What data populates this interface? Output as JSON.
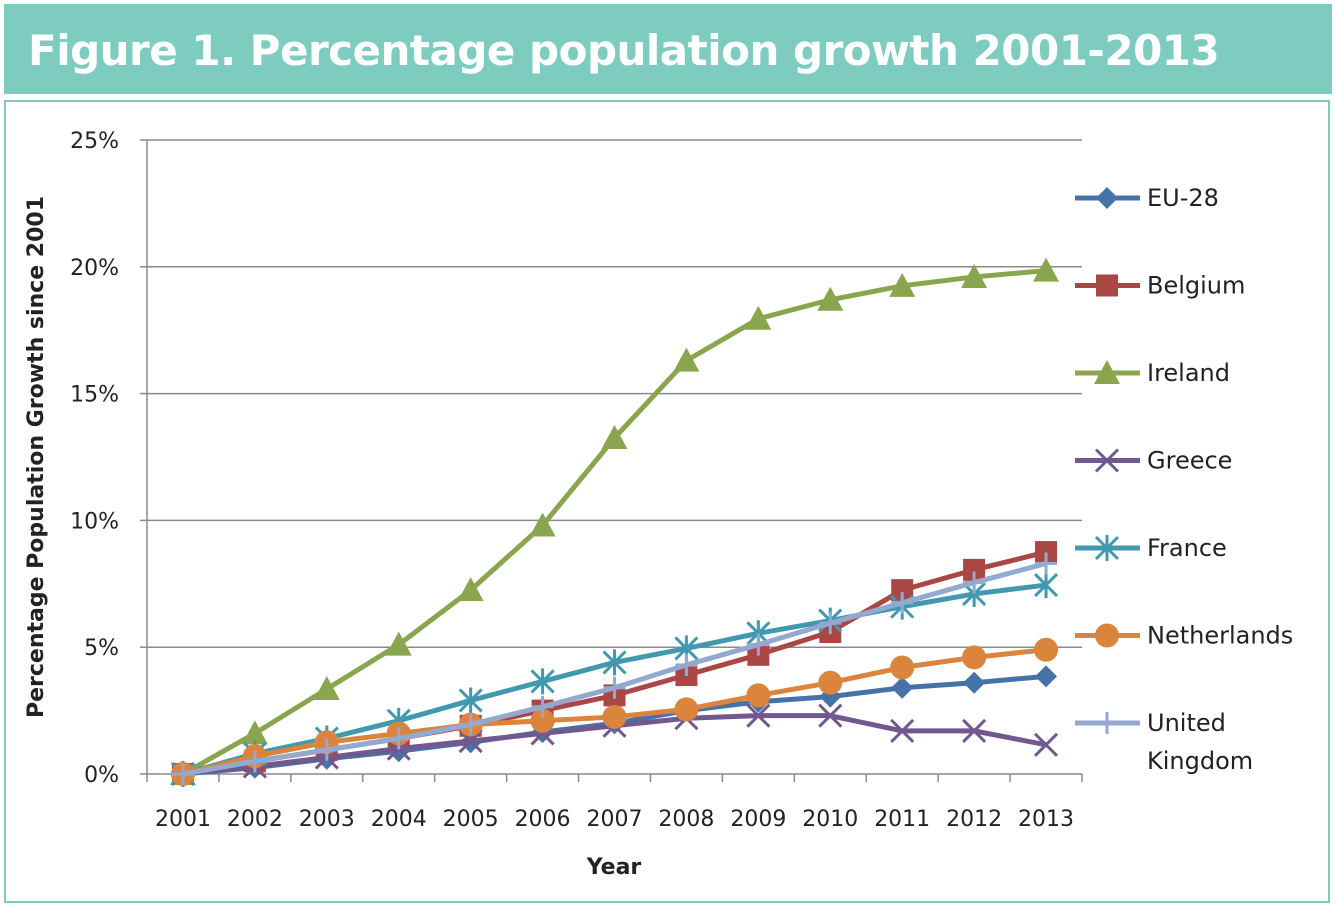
{
  "header": {
    "title": "Figure 1. Percentage population growth 2001-2013"
  },
  "chart_data": {
    "type": "line",
    "title": "Figure 1. Percentage population growth 2001-2013",
    "xlabel": "Year",
    "ylabel": "Percentage Population Growth since 2001",
    "x": [
      "2001",
      "2002",
      "2003",
      "2004",
      "2005",
      "2006",
      "2007",
      "2008",
      "2009",
      "2010",
      "2011",
      "2012",
      "2013"
    ],
    "ylim": [
      0,
      25
    ],
    "yticks": [
      0,
      5,
      10,
      15,
      20,
      25
    ],
    "ytick_labels": [
      "0%",
      "5%",
      "10%",
      "15%",
      "20%",
      "25%"
    ],
    "grid": true,
    "legend": "right",
    "series": [
      {
        "name": "EU-28",
        "color": "#4572a7",
        "marker": "diamond",
        "values": [
          0,
          0.25,
          0.6,
          0.9,
          1.25,
          1.65,
          2.0,
          2.5,
          2.85,
          3.05,
          3.4,
          3.6,
          3.85
        ]
      },
      {
        "name": "Belgium",
        "color": "#aa4643",
        "marker": "square",
        "values": [
          0,
          0.5,
          0.95,
          1.4,
          1.9,
          2.5,
          3.1,
          3.9,
          4.7,
          5.6,
          7.25,
          8.05,
          8.75
        ]
      },
      {
        "name": "Ireland",
        "color": "#89a54e",
        "marker": "triangle",
        "values": [
          0,
          1.6,
          3.35,
          5.1,
          7.25,
          9.8,
          13.25,
          16.3,
          17.95,
          18.7,
          19.25,
          19.6,
          19.85
        ]
      },
      {
        "name": "Greece",
        "color": "#71588f",
        "marker": "x",
        "values": [
          0,
          0.3,
          0.65,
          1.0,
          1.3,
          1.6,
          1.9,
          2.2,
          2.3,
          2.3,
          1.7,
          1.7,
          1.15
        ]
      },
      {
        "name": "France",
        "color": "#4198af",
        "marker": "star",
        "values": [
          0,
          0.8,
          1.4,
          2.1,
          2.9,
          3.65,
          4.4,
          4.95,
          5.55,
          6.05,
          6.6,
          7.1,
          7.45
        ]
      },
      {
        "name": "Netherlands",
        "color": "#db843d",
        "marker": "circle",
        "values": [
          0,
          0.7,
          1.25,
          1.6,
          1.95,
          2.1,
          2.25,
          2.55,
          3.1,
          3.6,
          4.2,
          4.6,
          4.9
        ]
      },
      {
        "name": "United Kingdom",
        "color": "#93a9cf",
        "marker": "plus",
        "values": [
          0,
          0.5,
          0.95,
          1.4,
          1.95,
          2.65,
          3.4,
          4.3,
          5.1,
          5.95,
          6.75,
          7.55,
          8.3
        ]
      }
    ]
  }
}
